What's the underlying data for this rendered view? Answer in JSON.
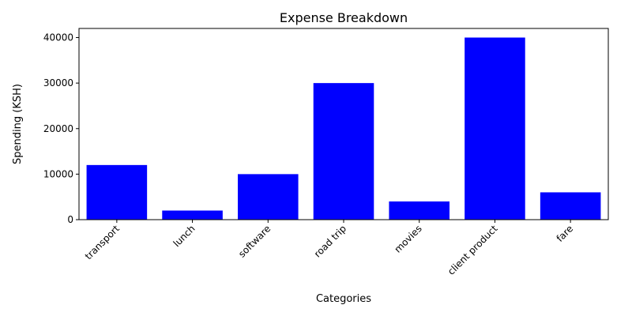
{
  "chart_data": {
    "type": "bar",
    "title": "Expense Breakdown",
    "xlabel": "Categories",
    "ylabel": "Spending (KSH)",
    "categories": [
      "transport",
      "lunch",
      "software",
      "road trip",
      "movies",
      "client product",
      "fare"
    ],
    "values": [
      12000,
      2000,
      10000,
      30000,
      4000,
      40000,
      6000
    ],
    "ylim": [
      0,
      42000
    ],
    "yticks": [
      0,
      10000,
      20000,
      30000,
      40000
    ],
    "bar_color": "#0000ff",
    "grid": false,
    "legend": "none",
    "xtick_rotation": 45
  }
}
